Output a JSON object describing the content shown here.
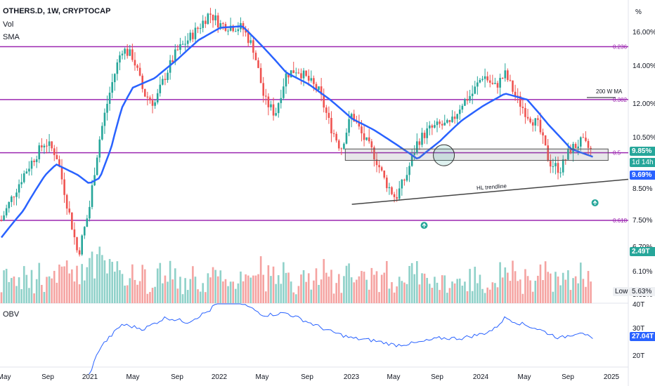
{
  "legend": {
    "symbol": "OTHERS.D, 1W, CRYPTOCAP",
    "vol": "Vol",
    "sma": "SMA",
    "obv": "OBV"
  },
  "price_axis": {
    "unit": "%",
    "ticks": [
      "16.00%",
      "14.00%",
      "12.00%",
      "10.50%",
      "8.50%",
      "7.50%",
      "6.70%",
      "6.10%",
      "5.63%"
    ]
  },
  "obv_axis": {
    "ticks": [
      "40T",
      "30T",
      "20T"
    ]
  },
  "time_axis": {
    "ticks": [
      "May",
      "Sep",
      "2021",
      "May",
      "Sep",
      "2022",
      "May",
      "Sep",
      "2023",
      "May",
      "Sep",
      "2024",
      "May",
      "Sep",
      "2025"
    ]
  },
  "badges": {
    "price_last": "9.85%",
    "countdown": "1d 14h",
    "sma_value": "9.69%",
    "volume": "2.49T",
    "low_label": "Low",
    "low_value": "5.63%",
    "obv_value": "27.04T"
  },
  "annotations": {
    "fib_0236": "0.236",
    "fib_0382": "0.382",
    "fib_05": "0.5",
    "fib_0618": "0.618",
    "ma200": "200 W MA",
    "trendline": "HL trendline"
  },
  "colors": {
    "up": "#26a69a",
    "down": "#ef5350",
    "up_vol": "#8fd1c9",
    "down_vol": "#f5a3a1",
    "sma": "#2962ff",
    "fib": "#9c27b0",
    "obv": "#2962ff",
    "trendline": "#444444",
    "price_badge": "#26a69a",
    "sma_badge": "#2962ff"
  },
  "chart_data": {
    "type": "candlestick",
    "timeframe": "1W",
    "scale": "log",
    "y_range": [
      5.6,
      17.5
    ],
    "fib_levels": [
      {
        "label": "0.236",
        "value": 15.1
      },
      {
        "label": "0.382",
        "value": 12.2
      },
      {
        "label": "0.5",
        "value": 9.85
      },
      {
        "label": "0.618",
        "value": 7.5
      }
    ],
    "price_anchors": [
      [
        "2020-05",
        7.5
      ],
      [
        "2020-07",
        9.0
      ],
      [
        "2020-09",
        10.3
      ],
      [
        "2020-10",
        9.8
      ],
      [
        "2020-11",
        8.0
      ],
      [
        "2020-12",
        6.5
      ],
      [
        "2021-01",
        7.8
      ],
      [
        "2021-02",
        10.5
      ],
      [
        "2021-03",
        12.8
      ],
      [
        "2021-04",
        15.0
      ],
      [
        "2021-05",
        14.5
      ],
      [
        "2021-06",
        12.5
      ],
      [
        "2021-07",
        12.0
      ],
      [
        "2021-08",
        13.5
      ],
      [
        "2021-09",
        14.8
      ],
      [
        "2021-10",
        15.5
      ],
      [
        "2021-11",
        16.3
      ],
      [
        "2021-12",
        17.3
      ],
      [
        "2022-01",
        16.5
      ],
      [
        "2022-03",
        16.3
      ],
      [
        "2022-04",
        15.0
      ],
      [
        "2022-05",
        12.2
      ],
      [
        "2022-06",
        11.5
      ],
      [
        "2022-07",
        13.5
      ],
      [
        "2022-08",
        13.8
      ],
      [
        "2022-10",
        12.6
      ],
      [
        "2022-11",
        11.0
      ],
      [
        "2022-12",
        10.0
      ],
      [
        "2023-01",
        11.5
      ],
      [
        "2023-02",
        10.5
      ],
      [
        "2023-03",
        9.8
      ],
      [
        "2023-04",
        8.8
      ],
      [
        "2023-05",
        8.2
      ],
      [
        "2023-06",
        9.0
      ],
      [
        "2023-07",
        10.3
      ],
      [
        "2023-08",
        10.8
      ],
      [
        "2023-09",
        11.0
      ],
      [
        "2023-10",
        11.0
      ],
      [
        "2023-11",
        12.0
      ],
      [
        "2023-12",
        12.5
      ],
      [
        "2024-01",
        13.5
      ],
      [
        "2024-02",
        12.8
      ],
      [
        "2024-03",
        13.5
      ],
      [
        "2024-04",
        12.3
      ],
      [
        "2024-05",
        11.5
      ],
      [
        "2024-06",
        11.0
      ],
      [
        "2024-07",
        9.5
      ],
      [
        "2024-08",
        9.2
      ],
      [
        "2024-09",
        10.0
      ],
      [
        "2024-10",
        10.3
      ],
      [
        "2024-11",
        9.85
      ]
    ],
    "sma_anchors": [
      [
        "2020-05",
        7.0
      ],
      [
        "2020-07",
        7.8
      ],
      [
        "2020-09",
        9.0
      ],
      [
        "2020-10",
        9.4
      ],
      [
        "2020-12",
        9.0
      ],
      [
        "2021-01",
        8.7
      ],
      [
        "2021-02",
        8.9
      ],
      [
        "2021-03",
        10.0
      ],
      [
        "2021-04",
        11.8
      ],
      [
        "2021-05",
        12.8
      ],
      [
        "2021-07",
        13.3
      ],
      [
        "2021-09",
        14.3
      ],
      [
        "2021-11",
        15.5
      ],
      [
        "2022-01",
        16.3
      ],
      [
        "2022-03",
        16.4
      ],
      [
        "2022-05",
        15.0
      ],
      [
        "2022-07",
        13.6
      ],
      [
        "2022-09",
        13.0
      ],
      [
        "2022-11",
        12.2
      ],
      [
        "2023-01",
        11.3
      ],
      [
        "2023-03",
        10.8
      ],
      [
        "2023-05",
        10.2
      ],
      [
        "2023-07",
        9.6
      ],
      [
        "2023-09",
        10.3
      ],
      [
        "2023-11",
        11.2
      ],
      [
        "2024-01",
        11.9
      ],
      [
        "2024-03",
        12.5
      ],
      [
        "2024-05",
        12.2
      ],
      [
        "2024-07",
        11.0
      ],
      [
        "2024-09",
        10.0
      ],
      [
        "2024-11",
        9.69
      ]
    ],
    "volume_label": "Vol",
    "volume_last": "2.49T",
    "obv_anchors": [
      [
        "2021-01",
        12
      ],
      [
        "2021-02",
        24
      ],
      [
        "2021-04",
        34
      ],
      [
        "2021-06",
        32
      ],
      [
        "2021-08",
        37
      ],
      [
        "2021-10",
        35
      ],
      [
        "2021-12",
        40
      ],
      [
        "2022-01",
        45
      ],
      [
        "2022-03",
        43
      ],
      [
        "2022-05",
        38
      ],
      [
        "2022-07",
        39
      ],
      [
        "2022-09",
        35
      ],
      [
        "2022-11",
        31
      ],
      [
        "2023-01",
        28
      ],
      [
        "2023-03",
        27
      ],
      [
        "2023-05",
        25
      ],
      [
        "2023-07",
        26
      ],
      [
        "2023-09",
        28
      ],
      [
        "2023-11",
        28
      ],
      [
        "2024-01",
        30
      ],
      [
        "2024-02",
        32
      ],
      [
        "2024-03",
        37
      ],
      [
        "2024-04",
        35
      ],
      [
        "2024-06",
        32
      ],
      [
        "2024-08",
        28
      ],
      [
        "2024-10",
        31
      ],
      [
        "2024-11",
        27.04
      ]
    ],
    "obv_range": [
      17,
      42
    ]
  }
}
